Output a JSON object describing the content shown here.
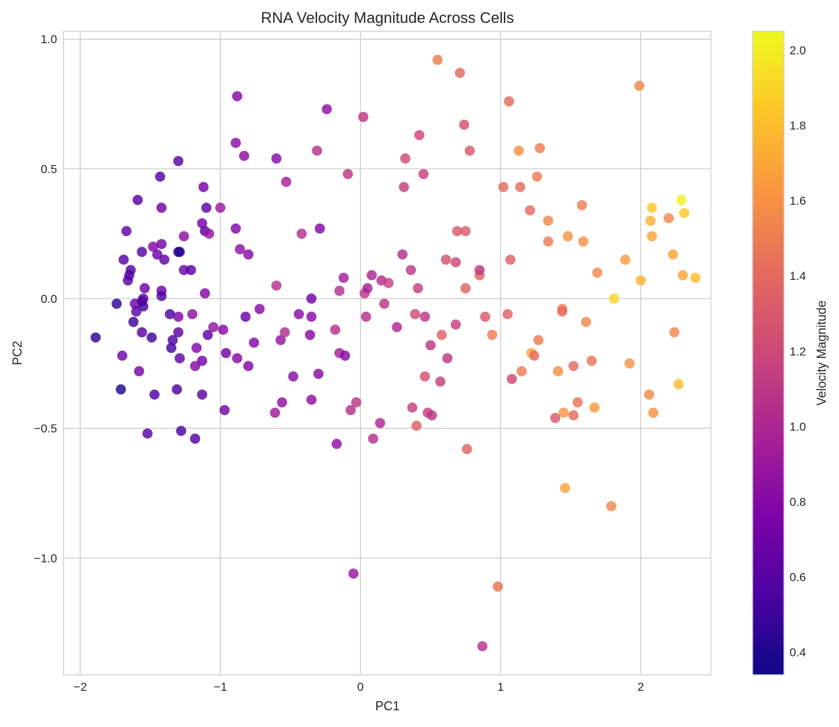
{
  "chart_data": {
    "type": "scatter",
    "title": "RNA Velocity Magnitude Across Cells",
    "xlabel": "PC1",
    "ylabel": "PC2",
    "xlim": [
      -2.12,
      2.5
    ],
    "ylim": [
      -1.45,
      1.03
    ],
    "xticks": [
      -2,
      -1,
      0,
      1,
      2
    ],
    "xtick_labels": [
      "−2",
      "−1",
      "0",
      "1",
      "2"
    ],
    "yticks": [
      1.0,
      0.5,
      0.0,
      -0.5,
      -1.0
    ],
    "ytick_labels": [
      "1.0",
      "0.5",
      "0.0",
      "−0.5",
      "−1.0"
    ],
    "grid": true,
    "colorbar": {
      "label": "Velocity Magnitude",
      "colormap": "plasma",
      "range": [
        0.34,
        2.05
      ],
      "ticks": [
        0.4,
        0.6,
        0.8,
        1.0,
        1.2,
        1.4,
        1.6,
        1.8,
        2.0
      ],
      "tick_labels": [
        "0.4",
        "0.6",
        "0.8",
        "1.0",
        "1.2",
        "1.4",
        "1.6",
        "1.8",
        "2.0"
      ]
    },
    "points": [
      {
        "x": -1.89,
        "y": -0.15,
        "c": 0.45
      },
      {
        "x": -1.74,
        "y": -0.02,
        "c": 0.45
      },
      {
        "x": -1.71,
        "y": -0.35,
        "c": 0.38
      },
      {
        "x": -1.7,
        "y": -0.22,
        "c": 0.7
      },
      {
        "x": -1.69,
        "y": 0.15,
        "c": 0.6
      },
      {
        "x": -1.67,
        "y": 0.26,
        "c": 0.62
      },
      {
        "x": -1.66,
        "y": 0.07,
        "c": 0.6
      },
      {
        "x": -1.65,
        "y": 0.09,
        "c": 0.58
      },
      {
        "x": -1.64,
        "y": 0.11,
        "c": 0.58
      },
      {
        "x": -1.62,
        "y": -0.09,
        "c": 0.5
      },
      {
        "x": -1.61,
        "y": -0.02,
        "c": 0.72
      },
      {
        "x": -1.6,
        "y": -0.05,
        "c": 0.62
      },
      {
        "x": -1.59,
        "y": 0.38,
        "c": 0.6
      },
      {
        "x": -1.58,
        "y": -0.28,
        "c": 0.72
      },
      {
        "x": -1.56,
        "y": -0.13,
        "c": 0.62
      },
      {
        "x": -1.56,
        "y": 0.18,
        "c": 0.6
      },
      {
        "x": -1.56,
        "y": -0.01,
        "c": 0.52
      },
      {
        "x": -1.55,
        "y": -0.03,
        "c": 0.52
      },
      {
        "x": -1.55,
        "y": 0.0,
        "c": 0.6
      },
      {
        "x": -1.54,
        "y": 0.04,
        "c": 0.7
      },
      {
        "x": -1.52,
        "y": -0.52,
        "c": 0.6
      },
      {
        "x": -1.49,
        "y": -0.15,
        "c": 0.52
      },
      {
        "x": -1.48,
        "y": 0.2,
        "c": 0.78
      },
      {
        "x": -1.47,
        "y": -0.37,
        "c": 0.55
      },
      {
        "x": -1.45,
        "y": 0.17,
        "c": 0.68
      },
      {
        "x": -1.43,
        "y": 0.47,
        "c": 0.58
      },
      {
        "x": -1.42,
        "y": 0.21,
        "c": 0.7
      },
      {
        "x": -1.42,
        "y": 0.35,
        "c": 0.7
      },
      {
        "x": -1.42,
        "y": 0.03,
        "c": 0.7
      },
      {
        "x": -1.42,
        "y": 0.01,
        "c": 0.58
      },
      {
        "x": -1.4,
        "y": 0.15,
        "c": 0.62
      },
      {
        "x": -1.36,
        "y": -0.06,
        "c": 0.55
      },
      {
        "x": -1.35,
        "y": -0.19,
        "c": 0.52
      },
      {
        "x": -1.34,
        "y": -0.16,
        "c": 0.58
      },
      {
        "x": -1.31,
        "y": -0.35,
        "c": 0.55
      },
      {
        "x": -1.3,
        "y": 0.53,
        "c": 0.62
      },
      {
        "x": -1.3,
        "y": 0.18,
        "c": 0.55
      },
      {
        "x": -1.3,
        "y": -0.07,
        "c": 0.78
      },
      {
        "x": -1.3,
        "y": -0.13,
        "c": 0.62
      },
      {
        "x": -1.29,
        "y": 0.18,
        "c": 0.4
      },
      {
        "x": -1.29,
        "y": -0.23,
        "c": 0.62
      },
      {
        "x": -1.28,
        "y": -0.51,
        "c": 0.55
      },
      {
        "x": -1.26,
        "y": 0.24,
        "c": 0.85
      },
      {
        "x": -1.26,
        "y": 0.11,
        "c": 0.7
      },
      {
        "x": -1.21,
        "y": 0.11,
        "c": 0.62
      },
      {
        "x": -1.2,
        "y": -0.06,
        "c": 0.85
      },
      {
        "x": -1.18,
        "y": -0.26,
        "c": 0.8
      },
      {
        "x": -1.18,
        "y": -0.54,
        "c": 0.58
      },
      {
        "x": -1.17,
        "y": -0.19,
        "c": 0.78
      },
      {
        "x": -1.13,
        "y": -0.37,
        "c": 0.62
      },
      {
        "x": -1.13,
        "y": -0.24,
        "c": 0.72
      },
      {
        "x": -1.13,
        "y": 0.29,
        "c": 0.75
      },
      {
        "x": -1.12,
        "y": 0.43,
        "c": 0.72
      },
      {
        "x": -1.11,
        "y": 0.26,
        "c": 0.62
      },
      {
        "x": -1.11,
        "y": 0.02,
        "c": 0.78
      },
      {
        "x": -1.1,
        "y": 0.35,
        "c": 0.62
      },
      {
        "x": -1.09,
        "y": -0.14,
        "c": 0.62
      },
      {
        "x": -1.08,
        "y": 0.25,
        "c": 0.9
      },
      {
        "x": -1.05,
        "y": -0.11,
        "c": 0.88
      },
      {
        "x": -1.0,
        "y": 0.35,
        "c": 0.9
      },
      {
        "x": -0.98,
        "y": -0.12,
        "c": 0.8
      },
      {
        "x": -0.97,
        "y": -0.43,
        "c": 0.72
      },
      {
        "x": -0.96,
        "y": -0.21,
        "c": 0.7
      },
      {
        "x": -0.89,
        "y": 0.27,
        "c": 0.78
      },
      {
        "x": -0.89,
        "y": 0.6,
        "c": 0.82
      },
      {
        "x": -0.88,
        "y": 0.78,
        "c": 0.8
      },
      {
        "x": -0.88,
        "y": -0.23,
        "c": 0.8
      },
      {
        "x": -0.86,
        "y": 0.19,
        "c": 0.85
      },
      {
        "x": -0.83,
        "y": 0.55,
        "c": 0.85
      },
      {
        "x": -0.82,
        "y": -0.07,
        "c": 0.68
      },
      {
        "x": -0.8,
        "y": 0.17,
        "c": 0.82
      },
      {
        "x": -0.8,
        "y": -0.26,
        "c": 0.78
      },
      {
        "x": -0.76,
        "y": -0.17,
        "c": 0.8
      },
      {
        "x": -0.72,
        "y": -0.04,
        "c": 0.82
      },
      {
        "x": -0.61,
        "y": -0.44,
        "c": 0.92
      },
      {
        "x": -0.6,
        "y": 0.05,
        "c": 1.05
      },
      {
        "x": -0.6,
        "y": 0.54,
        "c": 0.8
      },
      {
        "x": -0.57,
        "y": -0.16,
        "c": 0.88
      },
      {
        "x": -0.56,
        "y": -0.4,
        "c": 0.85
      },
      {
        "x": -0.54,
        "y": -0.13,
        "c": 1.05
      },
      {
        "x": -0.53,
        "y": 0.45,
        "c": 0.95
      },
      {
        "x": -0.48,
        "y": -0.3,
        "c": 0.82
      },
      {
        "x": -0.44,
        "y": -0.06,
        "c": 0.82
      },
      {
        "x": -0.42,
        "y": 0.25,
        "c": 1.05
      },
      {
        "x": -0.36,
        "y": -0.14,
        "c": 0.82
      },
      {
        "x": -0.35,
        "y": -0.07,
        "c": 0.82
      },
      {
        "x": -0.35,
        "y": 0.0,
        "c": 0.7
      },
      {
        "x": -0.35,
        "y": -0.39,
        "c": 0.85
      },
      {
        "x": -0.31,
        "y": 0.57,
        "c": 1.05
      },
      {
        "x": -0.3,
        "y": -0.29,
        "c": 0.82
      },
      {
        "x": -0.29,
        "y": 0.27,
        "c": 0.78
      },
      {
        "x": -0.24,
        "y": 0.73,
        "c": 0.85
      },
      {
        "x": -0.18,
        "y": -0.12,
        "c": 1.05
      },
      {
        "x": -0.17,
        "y": -0.56,
        "c": 0.85
      },
      {
        "x": -0.15,
        "y": 0.03,
        "c": 1.05
      },
      {
        "x": -0.15,
        "y": -0.21,
        "c": 0.95
      },
      {
        "x": -0.12,
        "y": 0.08,
        "c": 0.95
      },
      {
        "x": -0.11,
        "y": -0.22,
        "c": 0.8
      },
      {
        "x": -0.09,
        "y": 0.48,
        "c": 1.1
      },
      {
        "x": -0.07,
        "y": -0.43,
        "c": 1.05
      },
      {
        "x": -0.05,
        "y": -1.06,
        "c": 0.9
      },
      {
        "x": -0.03,
        "y": -0.4,
        "c": 1.1
      },
      {
        "x": 0.02,
        "y": 0.7,
        "c": 1.1
      },
      {
        "x": 0.03,
        "y": 0.02,
        "c": 1.1
      },
      {
        "x": 0.04,
        "y": -0.07,
        "c": 1.05
      },
      {
        "x": 0.05,
        "y": 0.04,
        "c": 0.95
      },
      {
        "x": 0.08,
        "y": 0.09,
        "c": 1.0
      },
      {
        "x": 0.09,
        "y": -0.54,
        "c": 1.05
      },
      {
        "x": 0.14,
        "y": -0.48,
        "c": 1.0
      },
      {
        "x": 0.15,
        "y": 0.07,
        "c": 1.05
      },
      {
        "x": 0.17,
        "y": -0.02,
        "c": 1.1
      },
      {
        "x": 0.2,
        "y": 0.06,
        "c": 1.15
      },
      {
        "x": 0.26,
        "y": -0.11,
        "c": 1.0
      },
      {
        "x": 0.3,
        "y": 0.17,
        "c": 1.05
      },
      {
        "x": 0.31,
        "y": 0.43,
        "c": 1.15
      },
      {
        "x": 0.32,
        "y": 0.54,
        "c": 1.2
      },
      {
        "x": 0.36,
        "y": 0.11,
        "c": 1.1
      },
      {
        "x": 0.37,
        "y": -0.42,
        "c": 1.15
      },
      {
        "x": 0.39,
        "y": -0.06,
        "c": 1.2
      },
      {
        "x": 0.4,
        "y": -0.49,
        "c": 1.35
      },
      {
        "x": 0.41,
        "y": 0.04,
        "c": 1.15
      },
      {
        "x": 0.42,
        "y": 0.63,
        "c": 1.2
      },
      {
        "x": 0.45,
        "y": 0.48,
        "c": 1.15
      },
      {
        "x": 0.46,
        "y": -0.07,
        "c": 1.1
      },
      {
        "x": 0.46,
        "y": -0.3,
        "c": 1.25
      },
      {
        "x": 0.48,
        "y": -0.44,
        "c": 1.15
      },
      {
        "x": 0.5,
        "y": -0.18,
        "c": 1.1
      },
      {
        "x": 0.51,
        "y": -0.45,
        "c": 1.1
      },
      {
        "x": 0.55,
        "y": 0.92,
        "c": 1.5
      },
      {
        "x": 0.57,
        "y": -0.32,
        "c": 1.15
      },
      {
        "x": 0.58,
        "y": -0.14,
        "c": 1.35
      },
      {
        "x": 0.61,
        "y": 0.15,
        "c": 1.25
      },
      {
        "x": 0.62,
        "y": -0.23,
        "c": 1.1
      },
      {
        "x": 0.68,
        "y": 0.14,
        "c": 1.2
      },
      {
        "x": 0.68,
        "y": -0.1,
        "c": 1.15
      },
      {
        "x": 0.69,
        "y": 0.26,
        "c": 1.3
      },
      {
        "x": 0.71,
        "y": 0.87,
        "c": 1.4
      },
      {
        "x": 0.74,
        "y": 0.67,
        "c": 1.25
      },
      {
        "x": 0.75,
        "y": 0.26,
        "c": 1.3
      },
      {
        "x": 0.75,
        "y": 0.04,
        "c": 1.35
      },
      {
        "x": 0.76,
        "y": -0.58,
        "c": 1.35
      },
      {
        "x": 0.78,
        "y": 0.57,
        "c": 1.3
      },
      {
        "x": 0.85,
        "y": 0.09,
        "c": 1.35
      },
      {
        "x": 0.85,
        "y": 0.11,
        "c": 1.1
      },
      {
        "x": 0.87,
        "y": -1.34,
        "c": 1.05
      },
      {
        "x": 0.89,
        "y": -0.07,
        "c": 1.3
      },
      {
        "x": 0.94,
        "y": -0.14,
        "c": 1.5
      },
      {
        "x": 0.98,
        "y": -1.11,
        "c": 1.45
      },
      {
        "x": 1.02,
        "y": 0.43,
        "c": 1.4
      },
      {
        "x": 1.05,
        "y": -0.06,
        "c": 1.35
      },
      {
        "x": 1.06,
        "y": 0.76,
        "c": 1.4
      },
      {
        "x": 1.07,
        "y": 0.15,
        "c": 1.35
      },
      {
        "x": 1.08,
        "y": -0.31,
        "c": 1.2
      },
      {
        "x": 1.13,
        "y": 0.57,
        "c": 1.6
      },
      {
        "x": 1.14,
        "y": 0.43,
        "c": 1.4
      },
      {
        "x": 1.15,
        "y": -0.28,
        "c": 1.5
      },
      {
        "x": 1.21,
        "y": 0.34,
        "c": 1.4
      },
      {
        "x": 1.22,
        "y": -0.21,
        "c": 1.7
      },
      {
        "x": 1.24,
        "y": -0.22,
        "c": 1.4
      },
      {
        "x": 1.26,
        "y": 0.47,
        "c": 1.5
      },
      {
        "x": 1.27,
        "y": -0.16,
        "c": 1.5
      },
      {
        "x": 1.28,
        "y": 0.58,
        "c": 1.5
      },
      {
        "x": 1.34,
        "y": 0.22,
        "c": 1.5
      },
      {
        "x": 1.34,
        "y": 0.3,
        "c": 1.55
      },
      {
        "x": 1.39,
        "y": -0.46,
        "c": 1.3
      },
      {
        "x": 1.41,
        "y": -0.28,
        "c": 1.6
      },
      {
        "x": 1.44,
        "y": -0.04,
        "c": 1.5
      },
      {
        "x": 1.44,
        "y": -0.05,
        "c": 1.4
      },
      {
        "x": 1.45,
        "y": -0.44,
        "c": 1.6
      },
      {
        "x": 1.46,
        "y": -0.73,
        "c": 1.7
      },
      {
        "x": 1.48,
        "y": 0.24,
        "c": 1.6
      },
      {
        "x": 1.52,
        "y": -0.26,
        "c": 1.4
      },
      {
        "x": 1.52,
        "y": -0.45,
        "c": 1.4
      },
      {
        "x": 1.55,
        "y": -0.4,
        "c": 1.45
      },
      {
        "x": 1.58,
        "y": 0.36,
        "c": 1.5
      },
      {
        "x": 1.59,
        "y": 0.22,
        "c": 1.6
      },
      {
        "x": 1.61,
        "y": -0.09,
        "c": 1.55
      },
      {
        "x": 1.65,
        "y": -0.24,
        "c": 1.45
      },
      {
        "x": 1.67,
        "y": -0.42,
        "c": 1.65
      },
      {
        "x": 1.69,
        "y": 0.1,
        "c": 1.55
      },
      {
        "x": 1.79,
        "y": -0.8,
        "c": 1.55
      },
      {
        "x": 1.81,
        "y": 0.0,
        "c": 1.9
      },
      {
        "x": 1.89,
        "y": 0.15,
        "c": 1.65
      },
      {
        "x": 1.92,
        "y": -0.25,
        "c": 1.6
      },
      {
        "x": 1.99,
        "y": 0.82,
        "c": 1.55
      },
      {
        "x": 2.0,
        "y": 0.07,
        "c": 1.75
      },
      {
        "x": 2.06,
        "y": -0.37,
        "c": 1.55
      },
      {
        "x": 2.07,
        "y": 0.3,
        "c": 1.75
      },
      {
        "x": 2.08,
        "y": 0.35,
        "c": 1.85
      },
      {
        "x": 2.08,
        "y": 0.24,
        "c": 1.7
      },
      {
        "x": 2.09,
        "y": -0.44,
        "c": 1.6
      },
      {
        "x": 2.2,
        "y": 0.31,
        "c": 1.55
      },
      {
        "x": 2.23,
        "y": 0.17,
        "c": 1.7
      },
      {
        "x": 2.24,
        "y": -0.13,
        "c": 1.55
      },
      {
        "x": 2.27,
        "y": -0.33,
        "c": 1.8
      },
      {
        "x": 2.29,
        "y": 0.38,
        "c": 2.02
      },
      {
        "x": 2.31,
        "y": 0.33,
        "c": 1.85
      },
      {
        "x": 2.3,
        "y": 0.09,
        "c": 1.7
      },
      {
        "x": 2.39,
        "y": 0.08,
        "c": 1.8
      }
    ]
  }
}
